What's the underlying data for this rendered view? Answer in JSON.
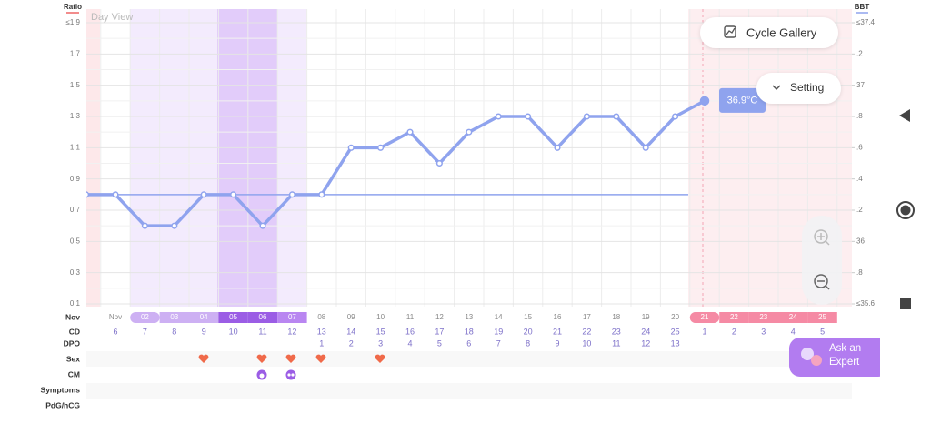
{
  "chart_data": {
    "type": "line",
    "annotation": "Day View",
    "y_axis_label": "Ratio",
    "y2_axis_label": "BBT",
    "ylim": [
      0.1,
      1.9
    ],
    "yticks": [
      {
        "value": 1.9,
        "label": "≤1.9"
      },
      1.7,
      1.5,
      1.3,
      1.1,
      0.9,
      0.7,
      0.5,
      0.3,
      0.1
    ],
    "y2lim": [
      35.6,
      37.4
    ],
    "y2ticks": [
      {
        "value": 37.4,
        "label": "≤37.4"
      },
      {
        "value": 37.2,
        "label": ".2"
      },
      37,
      {
        "value": 36.8,
        "label": ".8"
      },
      {
        "value": 36.6,
        "label": ".6"
      },
      {
        "value": 36.4,
        "label": ".4"
      },
      {
        "value": 36.2,
        "label": ".2"
      },
      36,
      {
        "value": 35.8,
        "label": ".8"
      },
      {
        "value": 35.6,
        "label": "≤35.6"
      }
    ],
    "categories": [
      null,
      "Nov",
      "02",
      "03",
      "04",
      "05",
      "06",
      "07",
      "08",
      "09",
      "10",
      "11",
      "12",
      "13",
      "14",
      "15",
      "16",
      "17",
      "18",
      "19",
      "20",
      "21",
      "22",
      "23",
      "24",
      "25"
    ],
    "series": [
      {
        "color": "#8fa3ee",
        "axis": "y2",
        "values": [
          36.3,
          36.3,
          36.1,
          36.1,
          36.3,
          36.3,
          36.1,
          36.3,
          36.3,
          36.6,
          36.6,
          36.7,
          36.5,
          36.7,
          36.8,
          36.8,
          36.6,
          36.8,
          36.8,
          36.6,
          36.8,
          36.9,
          null,
          null,
          null,
          null
        ],
        "value_labels": [
          null,
          null,
          null,
          null,
          null,
          null,
          null,
          null,
          null,
          null,
          null,
          null,
          null,
          null,
          null,
          null,
          null,
          null,
          null,
          null,
          null,
          "36.9°C",
          null,
          null,
          null,
          null
        ]
      }
    ],
    "coverline": 36.3
  },
  "rows": {
    "labels": [
      "Nov",
      "CD",
      "DPO",
      "Sex",
      "CM",
      "Symptoms",
      "PdG/hCG"
    ],
    "cd": [
      null,
      6,
      7,
      8,
      9,
      10,
      11,
      12,
      13,
      14,
      15,
      16,
      17,
      18,
      19,
      20,
      21,
      22,
      23,
      24,
      25,
      1,
      2,
      3,
      4,
      5
    ],
    "dpo": [
      null,
      null,
      null,
      null,
      null,
      null,
      null,
      null,
      1,
      2,
      3,
      4,
      5,
      6,
      7,
      8,
      9,
      10,
      11,
      12,
      13,
      null,
      null,
      null,
      null,
      null
    ]
  },
  "buttons": {
    "cycle_gallery": "Cycle Gallery",
    "setting": "Setting",
    "ask_expert": "Ask an Expert"
  }
}
